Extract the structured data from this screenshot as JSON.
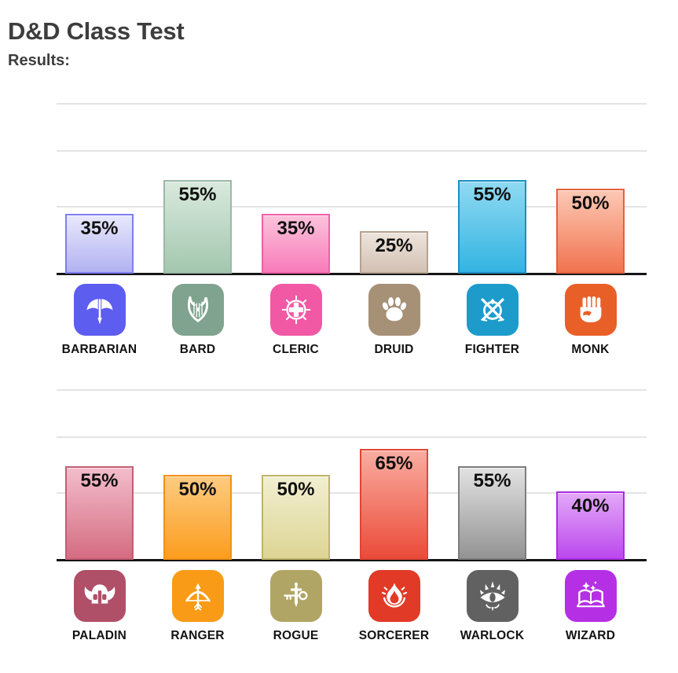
{
  "page": {
    "title": "D&D Class Test",
    "results_label": "Results:"
  },
  "colors": {
    "title_text": "#3d3d3d",
    "gridline": "#e4e4e4",
    "axis_line": "#151515",
    "value_text": "#0f0f0f"
  },
  "chart_data": [
    {
      "type": "bar",
      "title": "",
      "xlabel": "",
      "ylabel": "",
      "ylim": [
        0,
        100
      ],
      "grid": "horizontal-light",
      "legend": "none",
      "categories": [
        "BARBARIAN",
        "BARD",
        "CLERIC",
        "DRUID",
        "FIGHTER",
        "MONK"
      ],
      "values": [
        35,
        55,
        35,
        25,
        55,
        50
      ],
      "value_labels": [
        "35%",
        "55%",
        "35%",
        "25%",
        "55%",
        "50%"
      ],
      "items": [
        {
          "label": "BARBARIAN",
          "value": 35,
          "value_label": "35%",
          "icon": "double-axe-icon",
          "icon_bg": "#5d5df0",
          "bar_border": "#7e7ef0",
          "bar_top": "#e8e8fc",
          "bar_bottom": "#b2b2f2"
        },
        {
          "label": "BARD",
          "value": 55,
          "value_label": "55%",
          "icon": "lyre-icon",
          "icon_bg": "#7fa38e",
          "bar_border": "#9bb8a6",
          "bar_top": "#d9e9dd",
          "bar_bottom": "#a3c7af"
        },
        {
          "label": "CLERIC",
          "value": 35,
          "value_label": "35%",
          "icon": "holy-cross-icon",
          "icon_bg": "#f159a5",
          "bar_border": "#f060a8",
          "bar_top": "#fcc3dc",
          "bar_bottom": "#f87cba"
        },
        {
          "label": "DRUID",
          "value": 25,
          "value_label": "25%",
          "icon": "paw-icon",
          "icon_bg": "#a69076",
          "bar_border": "#b5a291",
          "bar_top": "#eee4dc",
          "bar_bottom": "#d3c1b3"
        },
        {
          "label": "FIGHTER",
          "value": 55,
          "value_label": "55%",
          "icon": "crossed-swords-icon",
          "icon_bg": "#1d9bcb",
          "bar_border": "#1c8fc0",
          "bar_top": "#90daf2",
          "bar_bottom": "#33b4e2"
        },
        {
          "label": "MONK",
          "value": 50,
          "value_label": "50%",
          "icon": "fist-icon",
          "icon_bg": "#e95f28",
          "bar_border": "#e5613e",
          "bar_top": "#fcc9b5",
          "bar_bottom": "#f1734f"
        }
      ]
    },
    {
      "type": "bar",
      "title": "",
      "xlabel": "",
      "ylabel": "",
      "ylim": [
        0,
        100
      ],
      "grid": "horizontal-light",
      "legend": "none",
      "categories": [
        "PALADIN",
        "RANGER",
        "ROGUE",
        "SORCERER",
        "WARLOCK",
        "WIZARD"
      ],
      "values": [
        55,
        50,
        50,
        65,
        55,
        40
      ],
      "value_labels": [
        "55%",
        "50%",
        "50%",
        "65%",
        "55%",
        "40%"
      ],
      "items": [
        {
          "label": "PALADIN",
          "value": 55,
          "value_label": "55%",
          "icon": "winged-helmet-icon",
          "icon_bg": "#b04f68",
          "bar_border": "#c25e74",
          "bar_top": "#f3bdcb",
          "bar_bottom": "#d56c82"
        },
        {
          "label": "RANGER",
          "value": 50,
          "value_label": "50%",
          "icon": "bow-arrow-icon",
          "icon_bg": "#f99b16",
          "bar_border": "#f39115",
          "bar_top": "#fdcb80",
          "bar_bottom": "#fc9d1e"
        },
        {
          "label": "ROGUE",
          "value": 50,
          "value_label": "50%",
          "icon": "dagger-key-icon",
          "icon_bg": "#b1a565",
          "bar_border": "#bfb468",
          "bar_top": "#f2efd1",
          "bar_bottom": "#ddd594"
        },
        {
          "label": "SORCERER",
          "value": 65,
          "value_label": "65%",
          "icon": "flame-icon",
          "icon_bg": "#e13a27",
          "bar_border": "#e14534",
          "bar_top": "#f9ada1",
          "bar_bottom": "#eb4b39"
        },
        {
          "label": "WARLOCK",
          "value": 55,
          "value_label": "55%",
          "icon": "arcane-eye-icon",
          "icon_bg": "#616161",
          "bar_border": "#7d7d7d",
          "bar_top": "#e2e2e2",
          "bar_bottom": "#939393"
        },
        {
          "label": "WIZARD",
          "value": 40,
          "value_label": "40%",
          "icon": "spellbook-icon",
          "icon_bg": "#b530e5",
          "bar_border": "#aa2ee2",
          "bar_top": "#e3a8f7",
          "bar_bottom": "#bb48ee"
        }
      ]
    }
  ]
}
